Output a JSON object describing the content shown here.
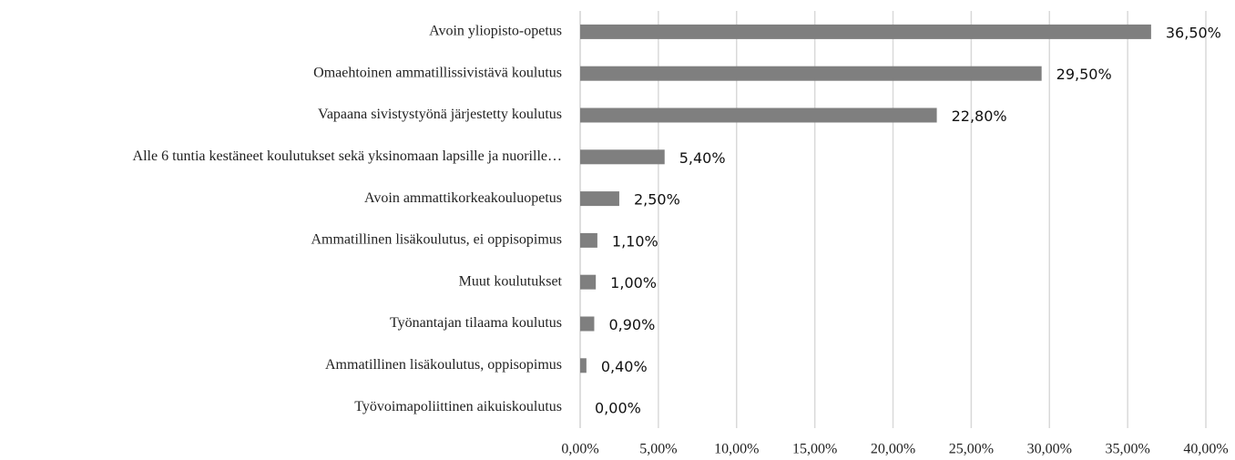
{
  "chart_data": {
    "type": "bar",
    "orientation": "horizontal",
    "categories": [
      "Avoin yliopisto-opetus",
      "Omaehtoinen ammatillissivistävä koulutus",
      "Vapaana sivistystyönä järjestetty koulutus",
      "Alle 6 tuntia kestäneet koulutukset sekä yksinomaan lapsille ja nuorille…",
      "Avoin ammattikorkeakouluopetus",
      "Ammatillinen lisäkoulutus, ei oppisopimus",
      "Muut koulutukset",
      "Työnantajan tilaama koulutus",
      "Ammatillinen lisäkoulutus, oppisopimus",
      "Työvoimapoliittinen aikuiskoulutus"
    ],
    "values": [
      36.5,
      29.5,
      22.8,
      5.4,
      2.5,
      1.1,
      1.0,
      0.9,
      0.4,
      0.0
    ],
    "value_labels": [
      "36,50%",
      "29,50%",
      "22,80%",
      "5,40%",
      "2,50%",
      "1,10%",
      "1,00%",
      "0,90%",
      "0,40%",
      "0,00%"
    ],
    "color": "#7f7f7f",
    "xlim": [
      0,
      40
    ],
    "xticks": [
      {
        "value": 0,
        "label": "0,00%"
      },
      {
        "value": 5,
        "label": "5,00%"
      },
      {
        "value": 10,
        "label": "10,00%"
      },
      {
        "value": 15,
        "label": "15,00%"
      },
      {
        "value": 20,
        "label": "20,00%"
      },
      {
        "value": 25,
        "label": "25,00%"
      },
      {
        "value": 30,
        "label": "30,00%"
      },
      {
        "value": 35,
        "label": "35,00%"
      },
      {
        "value": 40,
        "label": "40,00%"
      }
    ],
    "grid": true
  }
}
